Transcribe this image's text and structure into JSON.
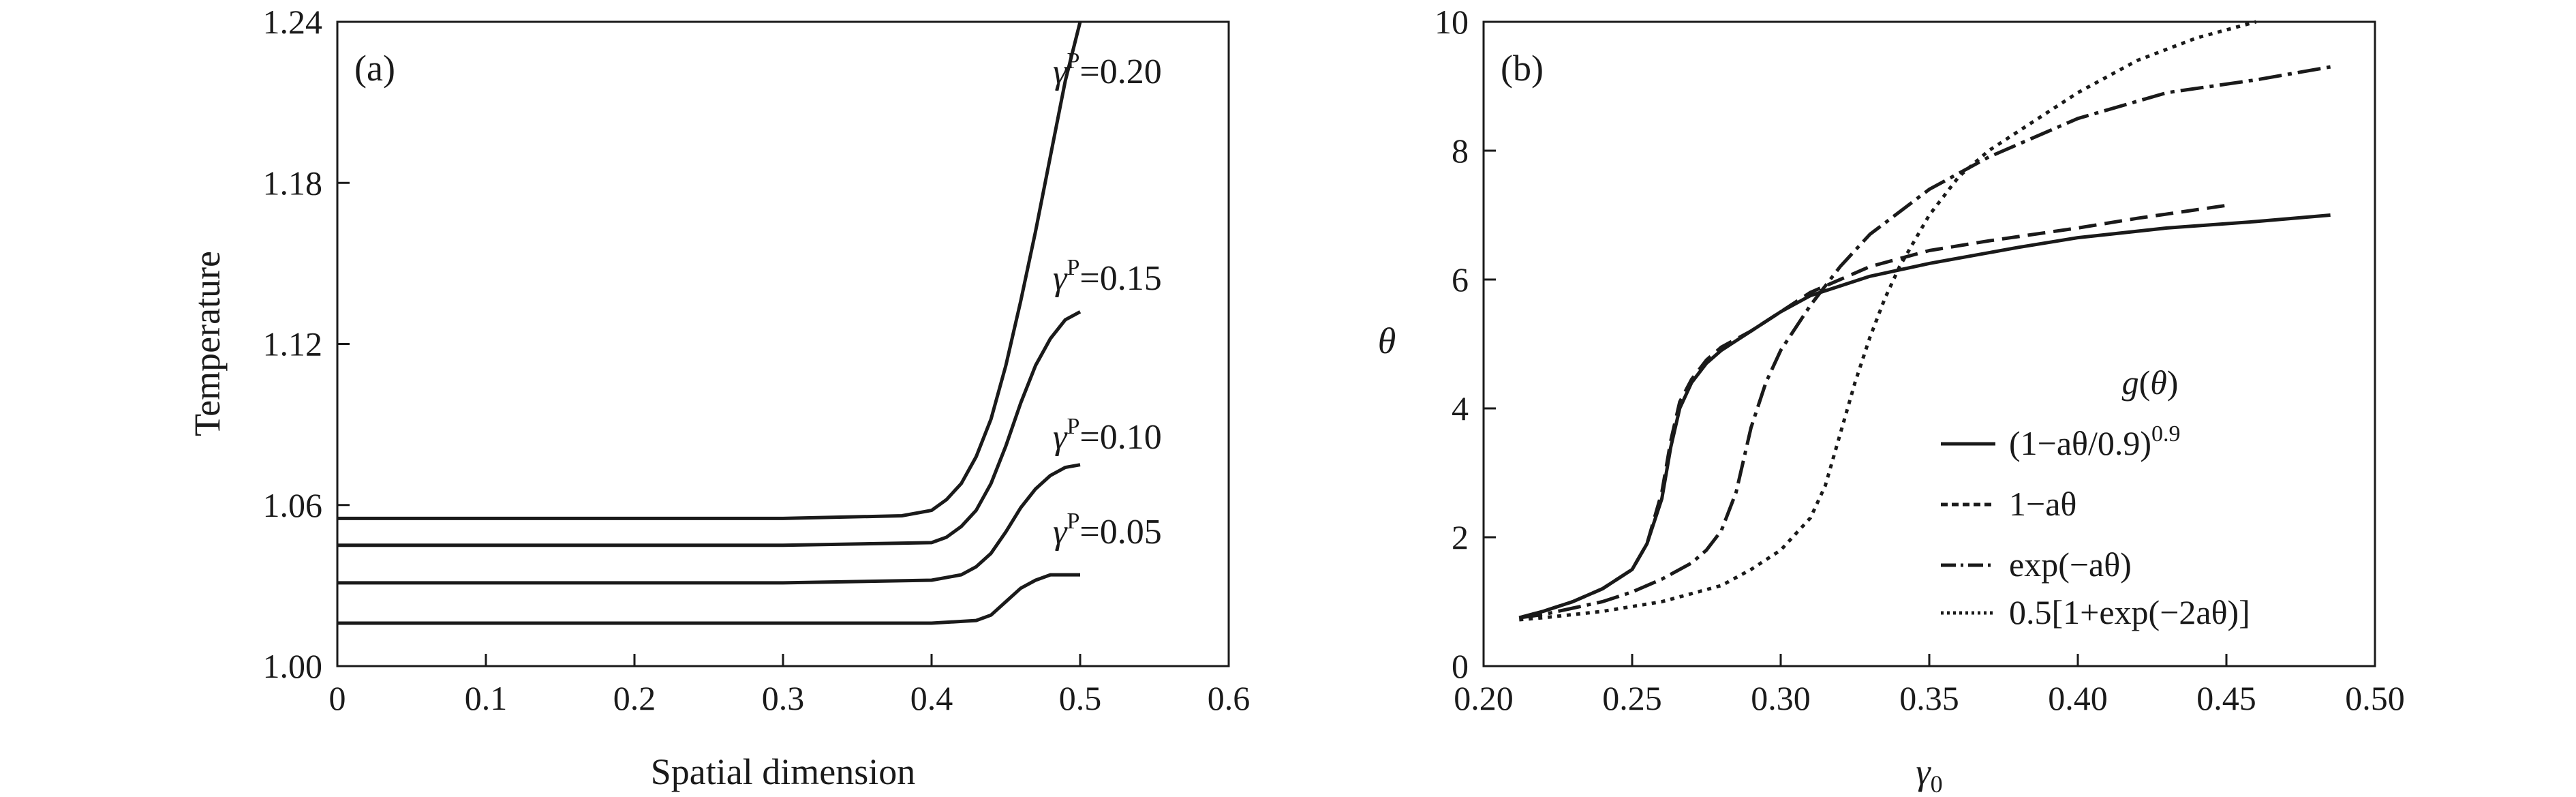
{
  "chart_data": [
    {
      "type": "line",
      "panel_label": "(a)",
      "xlabel": "Spatial dimension",
      "ylabel": "Temperature",
      "xlim": [
        0,
        0.6
      ],
      "ylim": [
        1.0,
        1.24
      ],
      "xticks": [
        "0",
        "0.1",
        "0.2",
        "0.3",
        "0.4",
        "0.5",
        "0.6"
      ],
      "yticks": [
        "1.00",
        "1.06",
        "1.12",
        "1.18",
        "1.24"
      ],
      "grid": false,
      "series": [
        {
          "name": "γP=0.20",
          "label_prefix": "γ",
          "label_sup": "P",
          "label_value": "=0.20",
          "x": [
            0,
            0.1,
            0.2,
            0.3,
            0.38,
            0.4,
            0.41,
            0.42,
            0.43,
            0.44,
            0.45,
            0.46,
            0.47,
            0.48,
            0.49,
            0.5
          ],
          "y": [
            1.055,
            1.055,
            1.055,
            1.055,
            1.056,
            1.058,
            1.062,
            1.068,
            1.078,
            1.092,
            1.112,
            1.136,
            1.162,
            1.19,
            1.218,
            1.24
          ]
        },
        {
          "name": "γP=0.15",
          "label_prefix": "γ",
          "label_sup": "P",
          "label_value": "=0.15",
          "x": [
            0,
            0.1,
            0.2,
            0.3,
            0.4,
            0.41,
            0.42,
            0.43,
            0.44,
            0.45,
            0.46,
            0.47,
            0.48,
            0.49,
            0.5
          ],
          "y": [
            1.045,
            1.045,
            1.045,
            1.045,
            1.046,
            1.048,
            1.052,
            1.058,
            1.068,
            1.082,
            1.098,
            1.112,
            1.122,
            1.129,
            1.132
          ]
        },
        {
          "name": "γP=0.10",
          "label_prefix": "γ",
          "label_sup": "P",
          "label_value": "=0.10",
          "x": [
            0,
            0.1,
            0.2,
            0.3,
            0.4,
            0.42,
            0.43,
            0.44,
            0.45,
            0.46,
            0.47,
            0.48,
            0.49,
            0.5
          ],
          "y": [
            1.031,
            1.031,
            1.031,
            1.031,
            1.032,
            1.034,
            1.037,
            1.042,
            1.05,
            1.059,
            1.066,
            1.071,
            1.074,
            1.075
          ]
        },
        {
          "name": "γP=0.05",
          "label_prefix": "γ",
          "label_sup": "P",
          "label_value": "=0.05",
          "x": [
            0,
            0.1,
            0.2,
            0.3,
            0.4,
            0.43,
            0.44,
            0.45,
            0.46,
            0.47,
            0.48,
            0.49,
            0.5
          ],
          "y": [
            1.016,
            1.016,
            1.016,
            1.016,
            1.016,
            1.017,
            1.019,
            1.024,
            1.029,
            1.032,
            1.034,
            1.034,
            1.034
          ]
        }
      ]
    },
    {
      "type": "line",
      "panel_label": "(b)",
      "xlabel": "γ₀",
      "ylabel": "θ",
      "xlim": [
        0.2,
        0.5
      ],
      "ylim": [
        0,
        10
      ],
      "xticks": [
        "0.20",
        "0.25",
        "0.30",
        "0.35",
        "0.40",
        "0.45",
        "0.50"
      ],
      "yticks": [
        "0",
        "2",
        "4",
        "6",
        "8",
        "10"
      ],
      "grid": false,
      "legend_title": "g(θ)",
      "legend_position": "center-right",
      "series": [
        {
          "name": "(1−aθ/0.9)^0.9",
          "legend_main": "(1−aθ/0.9)",
          "legend_sup": "0.9",
          "dash": "solid",
          "x": [
            0.212,
            0.22,
            0.23,
            0.24,
            0.25,
            0.255,
            0.26,
            0.263,
            0.266,
            0.27,
            0.275,
            0.28,
            0.29,
            0.3,
            0.31,
            0.33,
            0.35,
            0.38,
            0.4,
            0.43,
            0.46,
            0.485
          ],
          "y": [
            0.75,
            0.85,
            1.0,
            1.2,
            1.5,
            1.9,
            2.6,
            3.4,
            4.0,
            4.4,
            4.7,
            4.9,
            5.2,
            5.5,
            5.75,
            6.05,
            6.25,
            6.5,
            6.65,
            6.8,
            6.9,
            7.0
          ]
        },
        {
          "name": "1−aθ",
          "legend_main": "1−aθ",
          "legend_sup": "",
          "dash": "dashed",
          "x": [
            0.212,
            0.22,
            0.23,
            0.24,
            0.25,
            0.255,
            0.26,
            0.263,
            0.266,
            0.27,
            0.275,
            0.28,
            0.29,
            0.3,
            0.31,
            0.33,
            0.35,
            0.37,
            0.4,
            0.42,
            0.45
          ],
          "y": [
            0.75,
            0.85,
            1.0,
            1.2,
            1.5,
            1.9,
            2.7,
            3.5,
            4.1,
            4.45,
            4.75,
            4.95,
            5.2,
            5.5,
            5.8,
            6.2,
            6.45,
            6.6,
            6.8,
            6.95,
            7.15
          ]
        },
        {
          "name": "exp(−aθ)",
          "legend_main": "exp(−aθ)",
          "legend_sup": "",
          "dash": "dashdot",
          "x": [
            0.212,
            0.22,
            0.23,
            0.24,
            0.25,
            0.26,
            0.27,
            0.275,
            0.28,
            0.285,
            0.29,
            0.295,
            0.3,
            0.31,
            0.32,
            0.33,
            0.35,
            0.37,
            0.4,
            0.43,
            0.46,
            0.485
          ],
          "y": [
            0.75,
            0.8,
            0.9,
            1.0,
            1.15,
            1.35,
            1.6,
            1.8,
            2.1,
            2.7,
            3.7,
            4.4,
            4.9,
            5.6,
            6.2,
            6.7,
            7.4,
            7.9,
            8.5,
            8.9,
            9.1,
            9.3
          ]
        },
        {
          "name": "0.5[1+exp(−2aθ)]",
          "legend_main": "0.5[1+exp(−2aθ)]",
          "legend_sup": "",
          "dash": "dotted",
          "x": [
            0.212,
            0.22,
            0.24,
            0.26,
            0.28,
            0.29,
            0.3,
            0.31,
            0.315,
            0.32,
            0.325,
            0.33,
            0.335,
            0.34,
            0.35,
            0.36,
            0.37,
            0.38,
            0.4,
            0.42,
            0.44,
            0.46
          ],
          "y": [
            0.72,
            0.75,
            0.85,
            1.0,
            1.25,
            1.5,
            1.8,
            2.3,
            2.8,
            3.6,
            4.4,
            5.1,
            5.7,
            6.2,
            7.0,
            7.6,
            8.0,
            8.3,
            8.9,
            9.4,
            9.75,
            10.0
          ]
        }
      ]
    }
  ]
}
